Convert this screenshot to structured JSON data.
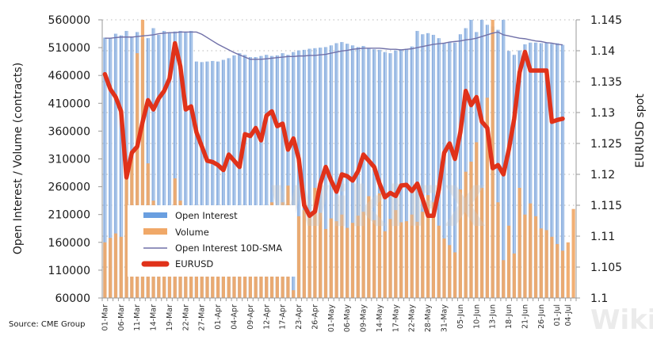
{
  "chart_data": {
    "type": "bar",
    "title": "",
    "ylabel": "Open Interest / Volume (contracts)",
    "y2label": "EURUSD spot",
    "xlabel": "",
    "ylim": [
      60000,
      560000
    ],
    "y2lim": [
      1.1,
      1.145
    ],
    "yticks": [
      "560000",
      "510000",
      "460000",
      "410000",
      "360000",
      "310000",
      "260000",
      "210000",
      "160000",
      "110000",
      "60000"
    ],
    "y2ticks": [
      "1.145",
      "1.14",
      "1.135",
      "1.13",
      "1.125",
      "1.12",
      "1.115",
      "1.11",
      "1.105",
      "1.1"
    ],
    "xtick_labels": [
      "01-Mar",
      "06-Mar",
      "11-Mar",
      "14-Mar",
      "19-Mar",
      "22-Mar",
      "27-Mar",
      "01-Apr",
      "04-Apr",
      "09-Apr",
      "12-Apr",
      "17-Apr",
      "23-Apr",
      "26-Apr",
      "01-May",
      "06-May",
      "09-May",
      "14-May",
      "17-May",
      "22-May",
      "28-May",
      "31-May",
      "05-Jun",
      "10-Jun",
      "13-Jun",
      "18-Jun",
      "21-Jun",
      "26-Jun",
      "01-Jul",
      "04-Jul"
    ],
    "xtick_index": [
      0,
      3,
      6,
      9,
      12,
      15,
      18,
      21,
      24,
      27,
      30,
      33,
      36,
      39,
      42,
      45,
      48,
      51,
      54,
      57,
      60,
      63,
      66,
      69,
      72,
      75,
      78,
      81,
      84,
      86
    ],
    "n_periods": 88,
    "grid": true,
    "legend_position": "bottom-left",
    "series": [
      {
        "name": "Open Interest",
        "type": "bar",
        "axis": "left",
        "color": "#7ea6dc",
        "values": [
          528000,
          527000,
          535000,
          532000,
          540000,
          530000,
          538000,
          525000,
          527000,
          545000,
          533000,
          540000,
          537000,
          539000,
          540000,
          538000,
          540000,
          485000,
          484000,
          485000,
          486000,
          485000,
          488000,
          491000,
          496000,
          500000,
          497000,
          493000,
          493000,
          495000,
          497000,
          495000,
          496000,
          500000,
          497000,
          502000,
          505000,
          506000,
          508000,
          509000,
          510000,
          511000,
          514000,
          518000,
          520000,
          517000,
          514000,
          511000,
          513000,
          508000,
          507000,
          506000,
          502000,
          500000,
          505000,
          507000,
          508000,
          512000,
          540000,
          534000,
          536000,
          533000,
          527000,
          518000,
          520000,
          519000,
          534000,
          545000,
          560000,
          538000,
          560000,
          551000,
          548000,
          542000,
          560000,
          504000,
          497000,
          505000,
          516000,
          519000,
          519000,
          518000,
          519000,
          517000,
          518000,
          515000,
          0,
          0
        ]
      },
      {
        "name": "Volume",
        "type": "bar",
        "axis": "left",
        "color": "#f0a868",
        "values": [
          160000,
          168000,
          176000,
          170000,
          292000,
          312000,
          500000,
          560000,
          302000,
          235000,
          200000,
          155000,
          210000,
          275000,
          235000,
          220000,
          210000,
          200000,
          195000,
          190000,
          200000,
          215000,
          205000,
          180000,
          200000,
          215000,
          207000,
          200000,
          196000,
          210000,
          225000,
          232000,
          215000,
          232000,
          262000,
          74000,
          207000,
          218000,
          210000,
          258000,
          213000,
          184000,
          203000,
          198000,
          210000,
          186000,
          195000,
          208000,
          215000,
          243000,
          200000,
          248000,
          180000,
          202000,
          218000,
          196000,
          198000,
          210000,
          197000,
          215000,
          245000,
          232000,
          190000,
          167000,
          155000,
          142000,
          255000,
          287000,
          305000,
          340000,
          258000,
          420000,
          560000,
          232000,
          128000,
          190000,
          140000,
          258000,
          210000,
          230000,
          207000,
          185000,
          182000,
          170000,
          157000,
          145000,
          160000,
          220000
        ]
      },
      {
        "name": "Open Interest 10D-SMA",
        "type": "line",
        "axis": "left",
        "color": "#7070a8",
        "values": [
          527000,
          527000,
          528000,
          529000,
          529000,
          529000,
          530000,
          531000,
          532000,
          533000,
          535000,
          536000,
          537000,
          537000,
          538000,
          538000,
          538000,
          538000,
          534000,
          528000,
          522000,
          516000,
          511000,
          506000,
          501000,
          497000,
          493000,
          489000,
          489000,
          489000,
          490000,
          491000,
          492000,
          493000,
          494000,
          494000,
          495000,
          495000,
          496000,
          496000,
          497000,
          498000,
          500000,
          502000,
          504000,
          505000,
          507000,
          508000,
          509000,
          509000,
          509000,
          509000,
          508000,
          507000,
          507000,
          506000,
          507000,
          508000,
          510000,
          512000,
          514000,
          516000,
          517000,
          518000,
          520000,
          521000,
          522000,
          524000,
          525000,
          527000,
          530000,
          533000,
          536000,
          538000,
          533000,
          531000,
          529000,
          527000,
          526000,
          524000,
          522000,
          521000,
          519000,
          518000,
          516000,
          515000,
          0,
          0
        ]
      },
      {
        "name": "EURUSD",
        "type": "line",
        "axis": "right",
        "color": "#e0321a",
        "values": [
          1.1362,
          1.1338,
          1.1325,
          1.1302,
          1.1195,
          1.1235,
          1.1245,
          1.1285,
          1.132,
          1.1305,
          1.1323,
          1.1335,
          1.1355,
          1.1412,
          1.1375,
          1.1305,
          1.131,
          1.1268,
          1.1245,
          1.1222,
          1.122,
          1.1215,
          1.1207,
          1.1232,
          1.1222,
          1.1212,
          1.1265,
          1.1262,
          1.1275,
          1.1255,
          1.1295,
          1.1302,
          1.1278,
          1.1282,
          1.124,
          1.1258,
          1.1225,
          1.115,
          1.1133,
          1.114,
          1.1185,
          1.1212,
          1.119,
          1.1172,
          1.12,
          1.1197,
          1.119,
          1.1205,
          1.1232,
          1.1222,
          1.1212,
          1.1185,
          1.1163,
          1.117,
          1.1165,
          1.1182,
          1.1183,
          1.1173,
          1.1185,
          1.116,
          1.1133,
          1.1133,
          1.1175,
          1.1235,
          1.125,
          1.1225,
          1.1268,
          1.1335,
          1.1312,
          1.1325,
          1.1285,
          1.1275,
          1.121,
          1.1215,
          1.12,
          1.124,
          1.129,
          1.1365,
          1.1398,
          1.1368,
          1.1368,
          1.1368,
          1.1368,
          1.1285,
          1.1288,
          1.129,
          null,
          null
        ]
      }
    ]
  },
  "source_text": "Source: CME Group",
  "watermark_text": "WikiFX"
}
